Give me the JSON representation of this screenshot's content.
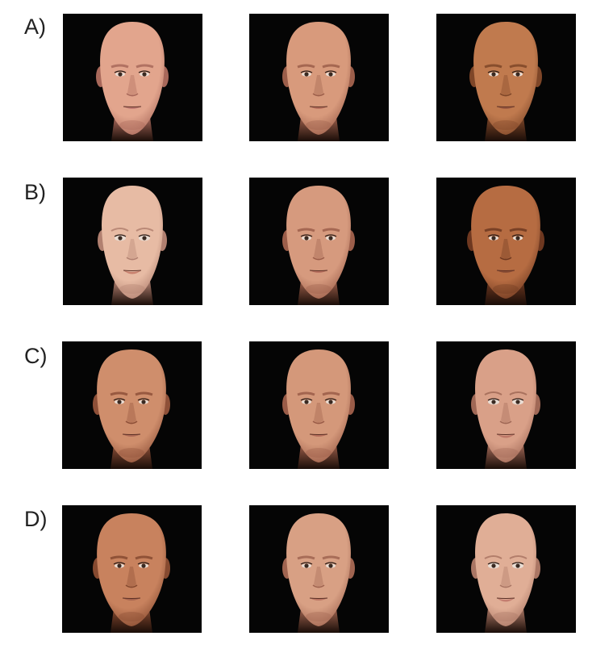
{
  "figure": {
    "rows": [
      {
        "label": "A)",
        "faces": [
          {
            "skin": "#e2a58d",
            "shade": "#a8685a",
            "lip": "#c07a72",
            "build": "full",
            "feature": "male"
          },
          {
            "skin": "#d89a7c",
            "shade": "#9c5e4a",
            "lip": "#b8705e",
            "build": "full",
            "feature": "male"
          },
          {
            "skin": "#c07a4e",
            "shade": "#7e4628",
            "lip": "#9c5a40",
            "build": "full",
            "feature": "male"
          }
        ]
      },
      {
        "label": "B)",
        "faces": [
          {
            "skin": "#e7bba4",
            "shade": "#b18070",
            "lip": "#c8806e",
            "build": "slim",
            "feature": "female"
          },
          {
            "skin": "#d69a7e",
            "shade": "#9c5e4a",
            "lip": "#b8705e",
            "build": "full",
            "feature": "male"
          },
          {
            "skin": "#b66c42",
            "shade": "#6e3820",
            "lip": "#8c4e34",
            "build": "wide",
            "feature": "male"
          }
        ]
      },
      {
        "label": "C)",
        "faces": [
          {
            "skin": "#cf8e6c",
            "shade": "#8e5038",
            "lip": "#ae6a56",
            "build": "wide",
            "feature": "male"
          },
          {
            "skin": "#d4987a",
            "shade": "#9a5c48",
            "lip": "#b66e5c",
            "build": "full",
            "feature": "male"
          },
          {
            "skin": "#d9a088",
            "shade": "#a06856",
            "lip": "#bf7868",
            "build": "slim",
            "feature": "female"
          }
        ]
      },
      {
        "label": "D)",
        "faces": [
          {
            "skin": "#c8825e",
            "shade": "#864a30",
            "lip": "#a6644e",
            "build": "wide",
            "feature": "male"
          },
          {
            "skin": "#d8a084",
            "shade": "#a06450",
            "lip": "#ba7462",
            "build": "full",
            "feature": "male"
          },
          {
            "skin": "#e0ae96",
            "shade": "#aa7664",
            "lip": "#c47e70",
            "build": "slim",
            "feature": "female"
          }
        ]
      }
    ]
  }
}
